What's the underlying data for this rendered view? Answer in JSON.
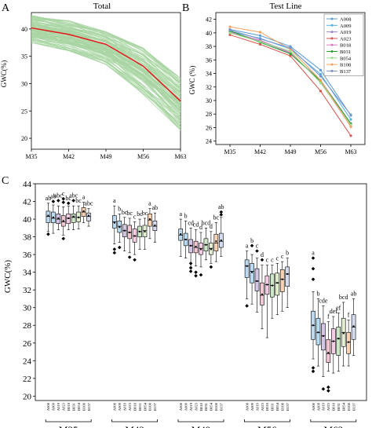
{
  "panels": {
    "A": {
      "letter": "A",
      "title": "Total"
    },
    "B": {
      "letter": "B",
      "title": "Test Line"
    },
    "C": {
      "letter": "C"
    }
  },
  "chart_data": [
    {
      "panel": "A",
      "type": "line",
      "title": "Total",
      "ylabel": "GWC(%)",
      "categories": [
        "M35",
        "M42",
        "M49",
        "M56",
        "M63"
      ],
      "ylim": [
        18,
        43
      ],
      "yticks": [
        20,
        25,
        30,
        35,
        40
      ],
      "bundle_color": "#a8d5a2",
      "bundle_range": {
        "upper": [
          42.5,
          41.5,
          39.5,
          36.5,
          31
        ],
        "lower": [
          37.5,
          36,
          33.5,
          28,
          21.5
        ]
      },
      "series": [
        {
          "name": "mean",
          "color": "#e02020",
          "values": [
            40.2,
            39,
            37.2,
            33.2,
            26.8
          ]
        }
      ]
    },
    {
      "panel": "B",
      "type": "line",
      "title": "Test Line",
      "ylabel": "GWC (%)",
      "categories": [
        "M35",
        "M42",
        "M49",
        "M56",
        "M63"
      ],
      "ylim": [
        23.5,
        43
      ],
      "yticks": [
        24,
        26,
        28,
        30,
        32,
        34,
        36,
        38,
        40,
        42
      ],
      "legend_position": "top-right",
      "series": [
        {
          "name": "A008",
          "color": "#5b9bd5",
          "values": [
            40.5,
            39.6,
            38.0,
            34.5,
            27.8
          ]
        },
        {
          "name": "A009",
          "color": "#4fb0e8",
          "values": [
            40.2,
            39.2,
            37.6,
            33.9,
            27.2
          ]
        },
        {
          "name": "A019",
          "color": "#9b7fc7",
          "values": [
            40.0,
            38.8,
            37.0,
            33.0,
            26.6
          ]
        },
        {
          "name": "A023",
          "color": "#d9534f",
          "values": [
            39.7,
            38.3,
            36.6,
            31.4,
            24.8
          ]
        },
        {
          "name": "B018",
          "color": "#e377c2",
          "values": [
            40.1,
            38.9,
            37.1,
            32.7,
            26.2
          ]
        },
        {
          "name": "B031",
          "color": "#2ca02c",
          "values": [
            40.3,
            38.6,
            36.9,
            32.9,
            26.6
          ]
        },
        {
          "name": "B054",
          "color": "#98df8a",
          "values": [
            40.0,
            38.7,
            37.3,
            32.6,
            26.4
          ]
        },
        {
          "name": "B108",
          "color": "#f5a25d",
          "values": [
            40.9,
            40.1,
            37.6,
            33.0,
            26.1
          ]
        },
        {
          "name": "B137",
          "color": "#7b8fc9",
          "values": [
            40.4,
            39.1,
            37.8,
            33.6,
            27.9
          ]
        }
      ]
    },
    {
      "panel": "C",
      "type": "box",
      "ylabel": "GWC(%)",
      "ylim": [
        19.5,
        44
      ],
      "yticks": [
        20,
        22,
        24,
        26,
        28,
        30,
        32,
        34,
        36,
        38,
        40,
        42,
        44
      ],
      "groups": [
        "M35",
        "M42",
        "M49",
        "M56",
        "M63"
      ],
      "lines": [
        "A008",
        "A009",
        "A019",
        "A023",
        "B018",
        "B031",
        "B054",
        "B108",
        "B137"
      ],
      "line_colors": [
        "#bcd9ef",
        "#b7dcf3",
        "#d3c6e6",
        "#f2c6d2",
        "#f7cde6",
        "#cde8c7",
        "#e1efcf",
        "#f9d3b4",
        "#d5dcef"
      ],
      "boxes": [
        [
          {
            "whisker": [
              38.6,
              41.8
            ],
            "box": [
              39.6,
              40.9
            ],
            "median": 40.3,
            "mean": 40.4,
            "outliers": [
              38.3
            ],
            "letter": "ab"
          },
          {
            "whisker": [
              38.4,
              41.6
            ],
            "box": [
              39.6,
              40.8
            ],
            "median": 40.1,
            "mean": 40.2,
            "outliers": [
              42.0
            ],
            "letter": "ab"
          },
          {
            "whisker": [
              38.8,
              41.5
            ],
            "box": [
              39.5,
              40.6
            ],
            "median": 40.0,
            "mean": 40.1,
            "outliers": [
              42.1
            ],
            "letter": "abc"
          },
          {
            "whisker": [
              38.2,
              41.4
            ],
            "box": [
              39.2,
              40.4
            ],
            "median": 39.7,
            "mean": 39.8,
            "outliers": [
              37.8,
              42.3,
              41.9
            ],
            "letter": "c"
          },
          {
            "whisker": [
              38.8,
              41.5
            ],
            "box": [
              39.5,
              40.6
            ],
            "median": 40.1,
            "mean": 40.1,
            "outliers": [
              41.8
            ],
            "letter": "bc"
          },
          {
            "whisker": [
              38.8,
              41.5
            ],
            "box": [
              39.6,
              40.6
            ],
            "median": 40.2,
            "mean": 40.3,
            "outliers": [
              42.1
            ],
            "letter": "abc"
          },
          {
            "whisker": [
              38.9,
              41.5
            ],
            "box": [
              39.7,
              40.8
            ],
            "median": 40.2,
            "mean": 40.2,
            "outliers": [],
            "letter": "bc"
          },
          {
            "whisker": [
              39.6,
              41.9
            ],
            "box": [
              40.3,
              41.3
            ],
            "median": 40.8,
            "mean": 40.9,
            "outliers": [],
            "letter": "a"
          },
          {
            "whisker": [
              39.2,
              41.2
            ],
            "box": [
              39.8,
              40.7
            ],
            "median": 40.3,
            "mean": 40.4,
            "outliers": [],
            "letter": "abc"
          }
        ],
        [
          {
            "whisker": [
              37.2,
              41.5
            ],
            "box": [
              39.0,
              40.4
            ],
            "median": 39.7,
            "mean": 39.6,
            "outliers": [
              36.2,
              36.6
            ],
            "letter": "a"
          },
          {
            "whisker": [
              37.4,
              40.6
            ],
            "box": [
              38.5,
              39.8
            ],
            "median": 39.2,
            "mean": 39.1,
            "outliers": [
              36.8
            ],
            "letter": "b"
          },
          {
            "whisker": [
              36.4,
              40.2
            ],
            "box": [
              38.0,
              39.4
            ],
            "median": 38.7,
            "mean": 38.7,
            "outliers": [],
            "letter": "bc"
          },
          {
            "whisker": [
              36.2,
              40.1
            ],
            "box": [
              37.8,
              39.3
            ],
            "median": 38.5,
            "mean": 38.5,
            "outliers": [
              35.7
            ],
            "letter": "bc"
          },
          {
            "whisker": [
              36.0,
              39.7
            ],
            "box": [
              37.4,
              38.9
            ],
            "median": 38.1,
            "mean": 38.1,
            "outliers": [
              35.4
            ],
            "letter": "c"
          },
          {
            "whisker": [
              36.6,
              40.0
            ],
            "box": [
              38.0,
              39.2
            ],
            "median": 38.6,
            "mean": 38.6,
            "outliers": [],
            "letter": "bc"
          },
          {
            "whisker": [
              36.6,
              40.1
            ],
            "box": [
              38.0,
              39.3
            ],
            "median": 38.7,
            "mean": 38.6,
            "outliers": [],
            "letter": "bc"
          },
          {
            "whisker": [
              37.8,
              41.2
            ],
            "box": [
              39.2,
              40.6
            ],
            "median": 39.9,
            "mean": 40.0,
            "outliers": [],
            "letter": "a"
          },
          {
            "whisker": [
              37.4,
              40.7
            ],
            "box": [
              38.7,
              39.8
            ],
            "median": 39.2,
            "mean": 39.3,
            "outliers": [],
            "letter": "ab"
          }
        ],
        [
          {
            "whisker": [
              35.8,
              40.0
            ],
            "box": [
              37.6,
              38.9
            ],
            "median": 38.2,
            "mean": 38.3,
            "outliers": [],
            "letter": "a"
          },
          {
            "whisker": [
              35.6,
              39.8
            ],
            "box": [
              37.0,
              38.4
            ],
            "median": 37.7,
            "mean": 37.7,
            "outliers": [],
            "letter": "b"
          },
          {
            "whisker": [
              34.5,
              39.0
            ],
            "box": [
              36.2,
              37.7
            ],
            "median": 37.0,
            "mean": 37.0,
            "outliers": [
              34.1,
              34.5,
              35.0
            ],
            "letter": "cd"
          },
          {
            "whisker": [
              34.7,
              38.8
            ],
            "box": [
              36.2,
              37.5
            ],
            "median": 36.8,
            "mean": 36.9,
            "outliers": [
              33.6,
              34.0
            ],
            "letter": "cd"
          },
          {
            "whisker": [
              34.6,
              38.5
            ],
            "box": [
              36.0,
              37.3
            ],
            "median": 36.7,
            "mean": 36.6,
            "outliers": [
              33.7
            ],
            "letter": "d"
          },
          {
            "whisker": [
              35.4,
              39.0
            ],
            "box": [
              36.4,
              37.8
            ],
            "median": 37.1,
            "mean": 37.1,
            "outliers": [],
            "letter": "bcd"
          },
          {
            "whisker": [
              35.0,
              38.6
            ],
            "box": [
              36.0,
              37.3
            ],
            "median": 36.7,
            "mean": 36.6,
            "outliers": [
              34.6
            ],
            "letter": "d"
          },
          {
            "whisker": [
              35.2,
              39.6
            ],
            "box": [
              36.4,
              38.3
            ],
            "median": 37.3,
            "mean": 37.5,
            "outliers": [],
            "letter": "bc"
          },
          {
            "whisker": [
              35.8,
              40.2
            ],
            "box": [
              36.8,
              38.4
            ],
            "median": 37.5,
            "mean": 37.6,
            "outliers": [
              40.5,
              40.8
            ],
            "letter": "ab"
          }
        ],
        [
          {
            "whisker": [
              31.0,
              36.4
            ],
            "box": [
              33.4,
              35.4
            ],
            "median": 34.7,
            "mean": 34.7,
            "outliers": [
              30.2
            ],
            "letter": "a"
          },
          {
            "whisker": [
              30.4,
              36.0
            ],
            "box": [
              32.8,
              35.0
            ],
            "median": 34.1,
            "mean": 34.0,
            "outliers": [
              37.0
            ],
            "letter": "b"
          },
          {
            "whisker": [
              29.5,
              35.6
            ],
            "box": [
              31.9,
              34.4
            ],
            "median": 33.0,
            "mean": 33.0,
            "outliers": [
              36.4
            ],
            "letter": "c"
          },
          {
            "whisker": [
              27.6,
              34.8
            ],
            "box": [
              30.3,
              32.8
            ],
            "median": 31.4,
            "mean": 31.5,
            "outliers": [
              35.4
            ],
            "letter": "d"
          },
          {
            "whisker": [
              26.6,
              34.8
            ],
            "box": [
              31.5,
              33.6
            ],
            "median": 32.6,
            "mean": 32.6,
            "outliers": [],
            "letter": "c"
          },
          {
            "whisker": [
              28.8,
              34.8
            ],
            "box": [
              31.2,
              33.8
            ],
            "median": 32.5,
            "mean": 32.5,
            "outliers": [],
            "letter": "c"
          },
          {
            "whisker": [
              29.2,
              35.0
            ],
            "box": [
              31.4,
              33.9
            ],
            "median": 32.8,
            "mean": 32.8,
            "outliers": [],
            "letter": "c"
          },
          {
            "whisker": [
              29.6,
              35.2
            ],
            "box": [
              31.8,
              34.3
            ],
            "median": 33.2,
            "mean": 33.2,
            "outliers": [],
            "letter": "c"
          },
          {
            "whisker": [
              30.0,
              35.6
            ],
            "box": [
              32.4,
              34.6
            ],
            "median": 33.8,
            "mean": 33.8,
            "outliers": [],
            "letter": "b"
          }
        ],
        [
          {
            "whisker": [
              24.2,
              31.8
            ],
            "box": [
              26.4,
              29.6
            ],
            "median": 28.0,
            "mean": 28.0,
            "outliers": [
              23.2,
              22.8,
              33.2,
              34.4,
              35.6
            ],
            "letter": "a"
          },
          {
            "whisker": [
              23.4,
              31.0
            ],
            "box": [
              25.8,
              28.8
            ],
            "median": 27.2,
            "mean": 27.2,
            "outliers": [],
            "letter": "b"
          },
          {
            "whisker": [
              22.2,
              30.2
            ],
            "box": [
              25.2,
              28.2
            ],
            "median": 26.8,
            "mean": 26.8,
            "outliers": [
              20.8
            ],
            "letter": "cde"
          },
          {
            "whisker": [
              22.8,
              28.4
            ],
            "box": [
              23.8,
              26.4
            ],
            "median": 24.8,
            "mean": 24.9,
            "outliers": [
              20.6,
              21.0
            ],
            "letter": "f"
          },
          {
            "whisker": [
              22.6,
              29.0
            ],
            "box": [
              24.8,
              27.6
            ],
            "median": 26.2,
            "mean": 26.2,
            "outliers": [],
            "letter": "def"
          },
          {
            "whisker": [
              22.8,
              29.4
            ],
            "box": [
              24.6,
              27.8
            ],
            "median": 26.5,
            "mean": 26.5,
            "outliers": [],
            "letter": "ef"
          },
          {
            "whisker": [
              23.4,
              30.6
            ],
            "box": [
              25.6,
              28.8
            ],
            "median": 27.2,
            "mean": 27.1,
            "outliers": [],
            "letter": "bcd"
          },
          {
            "whisker": [
              23.4,
              28.6
            ],
            "box": [
              24.8,
              27.2
            ],
            "median": 26.1,
            "mean": 26.1,
            "outliers": [],
            "letter": "f"
          },
          {
            "whisker": [
              24.6,
              31.0
            ],
            "box": [
              26.4,
              29.2
            ],
            "median": 27.8,
            "mean": 27.9,
            "outliers": [],
            "letter": "ab"
          }
        ]
      ]
    }
  ]
}
